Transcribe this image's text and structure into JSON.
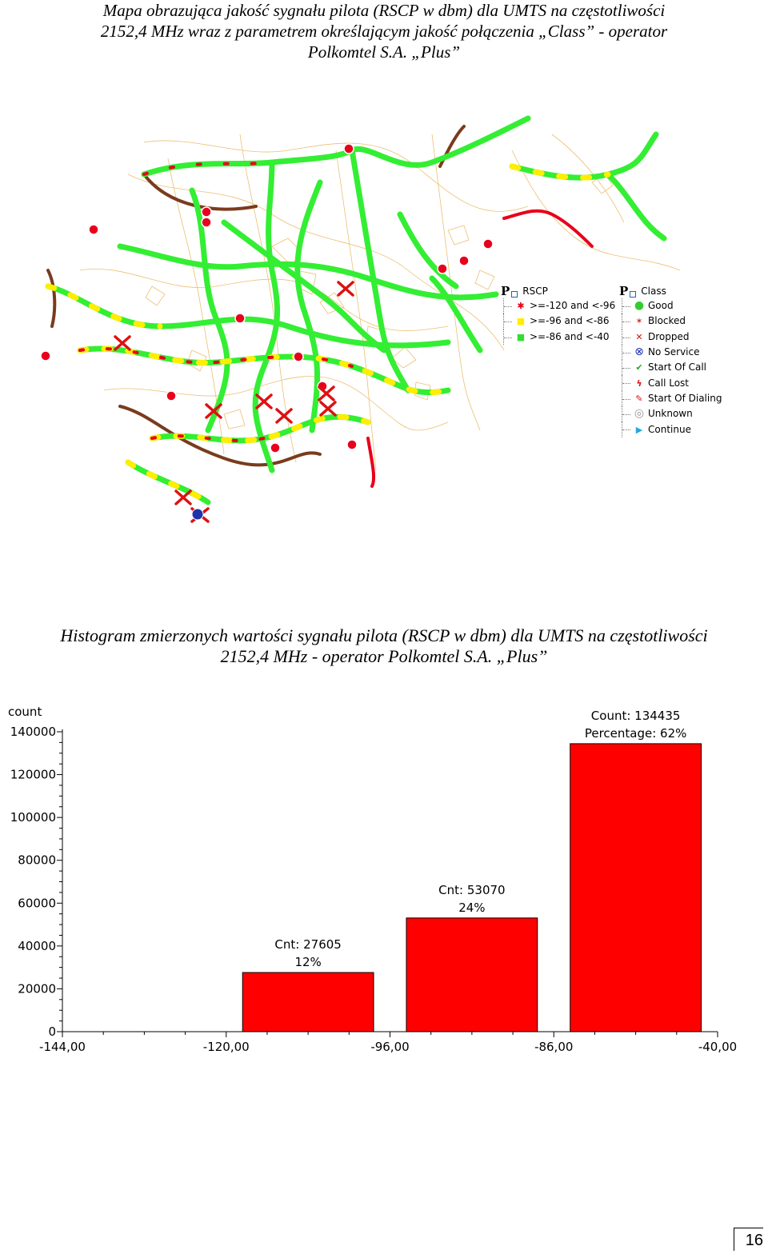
{
  "header": {
    "title_lines": [
      "Mapa obrazująca jakość sygnału pilota (RSCP w dbm) dla UMTS na częstotliwości",
      "2152,4 MHz wraz z parametrem określającym jakość połączenia „Class” - operator",
      "Polkomtel S.A. „Plus”"
    ]
  },
  "legend": {
    "rscp": {
      "title": "RSCP",
      "items": [
        {
          "label": ">=-120 and <-96",
          "color": "#e8001c",
          "icon": "star-icon"
        },
        {
          "label": ">=-96 and <-86",
          "color": "#ffff33",
          "icon": "square-icon"
        },
        {
          "label": ">=-86 and <-40",
          "color": "#33dd33",
          "icon": "square-icon"
        }
      ]
    },
    "class": {
      "title": "Class",
      "items": [
        {
          "label": "Good",
          "color": "#33cc33",
          "icon": "good-icon"
        },
        {
          "label": "Blocked",
          "color": "#cc3333",
          "icon": "blocked-icon"
        },
        {
          "label": "Dropped",
          "color": "#dd1111",
          "icon": "dropped-icon"
        },
        {
          "label": "No Service",
          "color": "#2233aa",
          "icon": "no-service-icon"
        },
        {
          "label": "Start Of Call",
          "color": "#22aa22",
          "icon": "start-of-call-icon"
        },
        {
          "label": "Call Lost",
          "color": "#dd1111",
          "icon": "call-lost-icon"
        },
        {
          "label": "Start Of Dialing",
          "color": "#dd1111",
          "icon": "start-of-dialing-icon"
        },
        {
          "label": "Unknown",
          "color": "#999999",
          "icon": "unknown-icon"
        },
        {
          "label": "Continue",
          "color": "#22aadd",
          "icon": "continue-icon"
        }
      ]
    }
  },
  "histogram_title_lines": [
    "Histogram zmierzonych wartości sygnału pilota (RSCP w dbm) dla UMTS na częstotliwości",
    "2152,4 MHz - operator Polkomtel S.A. „Plus”"
  ],
  "chart_data": {
    "type": "bar",
    "ylabel": "count",
    "ylim": [
      0,
      140000
    ],
    "yticks": [
      0,
      20000,
      40000,
      60000,
      80000,
      100000,
      120000,
      140000
    ],
    "x_edges_labels": [
      "-144,00",
      "-120,00",
      "-96,00",
      "-86,00",
      "-40,00"
    ],
    "bar_color": "#ff0000",
    "bars": [
      {
        "bin": 1,
        "value": 27605,
        "label_line1": "Cnt: 27605",
        "label_line2": "12%"
      },
      {
        "bin": 2,
        "value": 53070,
        "label_line1": "Cnt: 53070",
        "label_line2": "24%"
      },
      {
        "bin": 3,
        "value": 134435,
        "label_line1": "Count: 134435",
        "label_line2": "Percentage: 62%"
      }
    ]
  },
  "page_number": "16"
}
